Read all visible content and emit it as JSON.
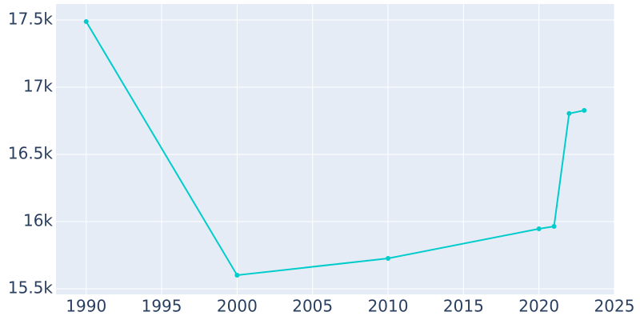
{
  "chart_data": {
    "type": "line",
    "x": [
      1990,
      2000,
      2010,
      2020,
      2021,
      2022,
      2023
    ],
    "series": [
      {
        "color": "#00cccc",
        "values": [
          17488,
          15601,
          15726,
          15946,
          15964,
          16804,
          16827
        ]
      }
    ],
    "xlim": [
      1988,
      2025
    ],
    "xticks": [
      1990,
      1995,
      2000,
      2005,
      2010,
      2015,
      2020,
      2025
    ],
    "ylim": [
      15458,
      17619
    ],
    "yticks": [
      {
        "value": 15500,
        "label": "15.5k"
      },
      {
        "value": 16000,
        "label": "16k"
      },
      {
        "value": 16500,
        "label": "16.5k"
      },
      {
        "value": 17000,
        "label": "17k"
      },
      {
        "value": 17500,
        "label": "17.5k"
      }
    ],
    "grid": true
  }
}
